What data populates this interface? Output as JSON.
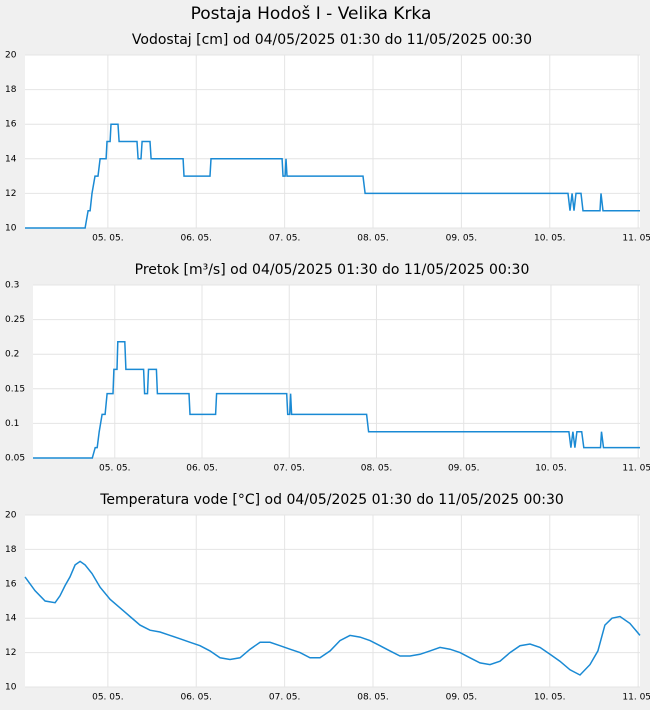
{
  "title": "Postaja Hodoš I - Velika Krka",
  "chart_data": [
    {
      "type": "line",
      "title": "Vodostaj [cm] od 04/05/2025 01:30 do 11/05/2025 00:30",
      "color": "#1a8ad4",
      "grid": true,
      "xlim": [
        4.0625,
        11.0208
      ],
      "ylim": [
        10,
        20
      ],
      "yticks": [
        10,
        12,
        14,
        16,
        18,
        20
      ],
      "xticks": [
        {
          "value": 5,
          "label": "05. 05."
        },
        {
          "value": 6,
          "label": "06. 05."
        },
        {
          "value": 7,
          "label": "07. 05."
        },
        {
          "value": 8,
          "label": "08. 05."
        },
        {
          "value": 9,
          "label": "09. 05."
        },
        {
          "value": 10,
          "label": "10. 05."
        },
        {
          "value": 11,
          "label": "11. 05."
        }
      ],
      "x": [
        4.0625,
        4.742,
        4.776,
        4.799,
        4.821,
        4.855,
        4.889,
        4.912,
        4.98,
        4.99,
        5.025,
        5.035,
        5.115,
        5.127,
        5.33,
        5.342,
        5.375,
        5.387,
        5.477,
        5.489,
        5.851,
        5.862,
        6.156,
        6.167,
        6.971,
        6.982,
        7.005,
        7.016,
        7.027,
        7.887,
        7.91,
        10.206,
        10.229,
        10.252,
        10.274,
        10.297,
        10.353,
        10.376,
        10.568,
        10.58,
        10.602,
        11.0208
      ],
      "values": [
        10,
        10,
        11,
        11,
        12,
        13,
        13,
        14,
        14,
        15,
        15,
        16,
        16,
        15,
        15,
        14,
        14,
        15,
        15,
        14,
        14,
        13,
        13,
        14,
        14,
        13,
        13,
        14,
        13,
        13,
        12,
        12,
        11,
        12,
        11,
        12,
        12,
        11,
        11,
        12,
        11,
        11
      ]
    },
    {
      "type": "line",
      "title": "Pretok [m³/s] od 04/05/2025 01:30 do 11/05/2025 00:30",
      "color": "#1a8ad4",
      "grid": true,
      "xlim": [
        4.0625,
        11.0208
      ],
      "ylim": [
        0.05,
        0.3
      ],
      "yticks": [
        0.05,
        0.1,
        0.15,
        0.2,
        0.25,
        0.3
      ],
      "xticks": [
        {
          "value": 5,
          "label": "05. 05."
        },
        {
          "value": 6,
          "label": "06. 05."
        },
        {
          "value": 7,
          "label": "07. 05."
        },
        {
          "value": 8,
          "label": "08. 05."
        },
        {
          "value": 9,
          "label": "09. 05."
        },
        {
          "value": 10,
          "label": "10. 05."
        },
        {
          "value": 11,
          "label": "11. 05."
        }
      ],
      "x": [
        4.0625,
        4.742,
        4.776,
        4.799,
        4.821,
        4.855,
        4.889,
        4.912,
        4.98,
        4.99,
        5.025,
        5.035,
        5.115,
        5.127,
        5.33,
        5.342,
        5.375,
        5.387,
        5.477,
        5.489,
        5.851,
        5.862,
        6.156,
        6.167,
        6.971,
        6.982,
        7.005,
        7.016,
        7.027,
        7.887,
        7.91,
        10.206,
        10.229,
        10.252,
        10.274,
        10.297,
        10.353,
        10.376,
        10.568,
        10.58,
        10.602,
        11.0208
      ],
      "values": [
        0.05,
        0.05,
        0.065,
        0.065,
        0.088,
        0.113,
        0.113,
        0.143,
        0.143,
        0.178,
        0.178,
        0.218,
        0.218,
        0.178,
        0.178,
        0.143,
        0.143,
        0.178,
        0.178,
        0.143,
        0.143,
        0.113,
        0.113,
        0.143,
        0.143,
        0.113,
        0.113,
        0.143,
        0.113,
        0.113,
        0.088,
        0.088,
        0.065,
        0.088,
        0.065,
        0.088,
        0.088,
        0.065,
        0.065,
        0.088,
        0.065,
        0.065
      ]
    },
    {
      "type": "line",
      "title": "Temperatura vode [°C] od 04/05/2025 01:30 do 11/05/2025 00:30",
      "color": "#1a8ad4",
      "grid": true,
      "xlim": [
        4.0625,
        11.0208
      ],
      "ylim": [
        10,
        20
      ],
      "yticks": [
        10,
        12,
        14,
        16,
        18,
        20
      ],
      "xticks": [
        {
          "value": 5,
          "label": "05. 05."
        },
        {
          "value": 6,
          "label": "06. 05."
        },
        {
          "value": 7,
          "label": "07. 05."
        },
        {
          "value": 8,
          "label": "08. 05."
        },
        {
          "value": 9,
          "label": "09. 05."
        },
        {
          "value": 10,
          "label": "10. 05."
        },
        {
          "value": 11,
          "label": "11. 05."
        }
      ],
      "x": [
        4.0625,
        4.176,
        4.29,
        4.403,
        4.459,
        4.516,
        4.572,
        4.629,
        4.686,
        4.742,
        4.821,
        4.912,
        5.025,
        5.138,
        5.251,
        5.364,
        5.477,
        5.59,
        5.704,
        5.817,
        5.93,
        6.043,
        6.156,
        6.269,
        6.382,
        6.495,
        6.609,
        6.722,
        6.835,
        6.948,
        7.061,
        7.174,
        7.287,
        7.4,
        7.514,
        7.627,
        7.74,
        7.853,
        7.966,
        8.079,
        8.192,
        8.305,
        8.419,
        8.532,
        8.645,
        8.758,
        8.871,
        8.984,
        9.097,
        9.21,
        9.324,
        9.437,
        9.55,
        9.663,
        9.776,
        9.889,
        10.002,
        10.115,
        10.229,
        10.342,
        10.455,
        10.545,
        10.624,
        10.704,
        10.794,
        10.907,
        11.0208
      ],
      "values": [
        16.4,
        15.6,
        15.0,
        14.9,
        15.3,
        15.9,
        16.4,
        17.1,
        17.3,
        17.1,
        16.6,
        15.8,
        15.1,
        14.6,
        14.1,
        13.6,
        13.3,
        13.2,
        13.0,
        12.8,
        12.6,
        12.4,
        12.1,
        11.7,
        11.6,
        11.7,
        12.2,
        12.6,
        12.6,
        12.4,
        12.2,
        12.0,
        11.7,
        11.7,
        12.1,
        12.7,
        13.0,
        12.9,
        12.7,
        12.4,
        12.1,
        11.8,
        11.8,
        11.9,
        12.1,
        12.3,
        12.2,
        12.0,
        11.7,
        11.4,
        11.3,
        11.5,
        12.0,
        12.4,
        12.5,
        12.3,
        11.9,
        11.5,
        11.0,
        10.7,
        11.3,
        12.1,
        13.6,
        14.0,
        14.1,
        13.7,
        13.0
      ]
    }
  ]
}
